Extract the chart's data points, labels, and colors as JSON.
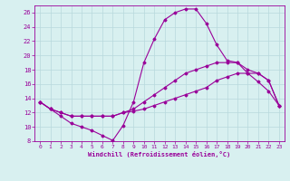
{
  "title": "",
  "xlabel": "Windchill (Refroidissement éolien,°C)",
  "ylabel": "",
  "background_color": "#d8f0f0",
  "grid_color": "#b8d8dc",
  "line_color": "#990099",
  "xlim": [
    -0.5,
    23.5
  ],
  "ylim": [
    8,
    27
  ],
  "xticks": [
    0,
    1,
    2,
    3,
    4,
    5,
    6,
    7,
    8,
    9,
    10,
    11,
    12,
    13,
    14,
    15,
    16,
    17,
    18,
    19,
    20,
    21,
    22,
    23
  ],
  "yticks": [
    8,
    10,
    12,
    14,
    16,
    18,
    20,
    22,
    24,
    26
  ],
  "series": [
    {
      "x": [
        0,
        1,
        2,
        3,
        4,
        5,
        6,
        7,
        8,
        9,
        10,
        11,
        12,
        13,
        14,
        15,
        16,
        17,
        18,
        19,
        20,
        21,
        22,
        23
      ],
      "y": [
        13.5,
        12.5,
        11.5,
        10.5,
        10.0,
        9.5,
        8.8,
        8.1,
        10.2,
        13.5,
        19.0,
        22.3,
        25.0,
        26.0,
        26.5,
        26.5,
        24.5,
        21.5,
        19.3,
        19.0,
        17.5,
        16.3,
        15.0,
        13.0
      ]
    },
    {
      "x": [
        0,
        1,
        2,
        3,
        4,
        5,
        6,
        7,
        8,
        9,
        10,
        11,
        12,
        13,
        14,
        15,
        16,
        17,
        18,
        19,
        20,
        21,
        22,
        23
      ],
      "y": [
        13.5,
        12.5,
        12.0,
        11.5,
        11.5,
        11.5,
        11.5,
        11.5,
        12.0,
        12.5,
        13.5,
        14.5,
        15.5,
        16.5,
        17.5,
        18.0,
        18.5,
        19.0,
        19.0,
        19.0,
        18.0,
        17.5,
        16.5,
        13.0
      ]
    },
    {
      "x": [
        0,
        1,
        2,
        3,
        4,
        5,
        6,
        7,
        8,
        9,
        10,
        11,
        12,
        13,
        14,
        15,
        16,
        17,
        18,
        19,
        20,
        21,
        22,
        23
      ],
      "y": [
        13.5,
        12.5,
        12.0,
        11.5,
        11.5,
        11.5,
        11.5,
        11.5,
        12.0,
        12.2,
        12.5,
        13.0,
        13.5,
        14.0,
        14.5,
        15.0,
        15.5,
        16.5,
        17.0,
        17.5,
        17.5,
        17.5,
        16.5,
        13.0
      ]
    }
  ]
}
